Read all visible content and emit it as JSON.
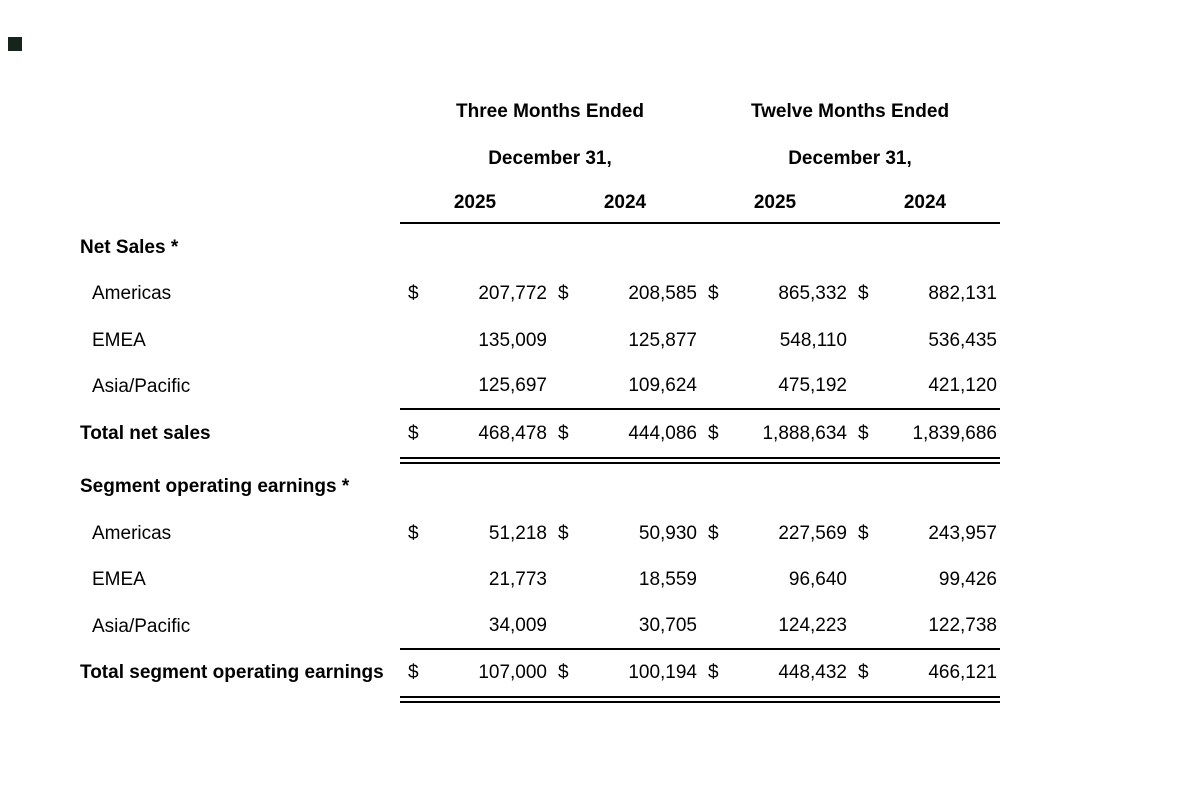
{
  "document": {
    "background_color": "#ffffff",
    "text_color": "#000000",
    "rule_color": "#000000",
    "corner_marker_color": "#15251b"
  },
  "table": {
    "currency_symbol": "$",
    "header": {
      "groups": [
        {
          "title": "Three Months Ended",
          "subtitle": "December 31,",
          "years": [
            "2025",
            "2024"
          ]
        },
        {
          "title": "Twelve Months Ended",
          "subtitle": "December 31,",
          "years": [
            "2025",
            "2024"
          ]
        }
      ]
    },
    "sections": [
      {
        "title": "Net Sales *",
        "rows": [
          {
            "label": "Americas",
            "values": [
              "207,772",
              "208,585",
              "865,332",
              "882,131"
            ]
          },
          {
            "label": "EMEA",
            "values": [
              "135,009",
              "125,877",
              "548,110",
              "536,435"
            ]
          },
          {
            "label": "Asia/Pacific",
            "values": [
              "125,697",
              "109,624",
              "475,192",
              "421,120"
            ]
          }
        ],
        "total": {
          "label": "Total net sales",
          "values": [
            "468,478",
            "444,086",
            "1,888,634",
            "1,839,686"
          ]
        }
      },
      {
        "title": "Segment operating earnings *",
        "rows": [
          {
            "label": "Americas",
            "values": [
              "51,218",
              "50,930",
              "227,569",
              "243,957"
            ]
          },
          {
            "label": "EMEA",
            "values": [
              "21,773",
              "18,559",
              "96,640",
              "99,426"
            ]
          },
          {
            "label": "Asia/Pacific",
            "values": [
              "34,009",
              "30,705",
              "124,223",
              "122,738"
            ]
          }
        ],
        "total": {
          "label": "Total segment operating earnings",
          "values": [
            "107,000",
            "100,194",
            "448,432",
            "466,121"
          ]
        }
      }
    ]
  }
}
